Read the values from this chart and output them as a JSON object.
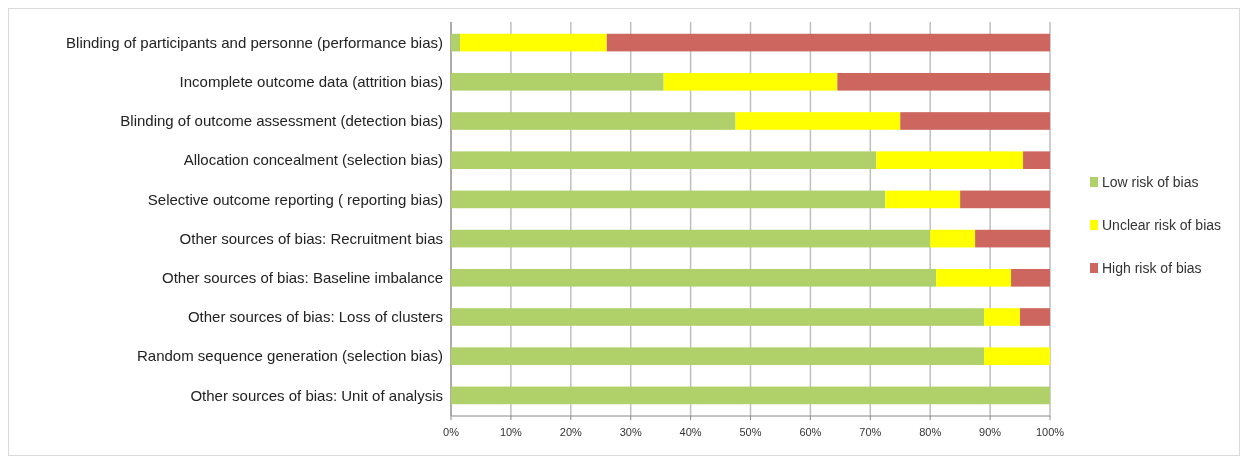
{
  "chart_data": {
    "type": "bar",
    "orientation": "horizontal",
    "stacked": true,
    "categories": [
      "Blinding of participants and personne (performance bias)",
      "Incomplete outcome data  (attrition bias)",
      "Blinding of outcome assessment (detection bias)",
      "Allocation concealment (selection bias)",
      "Selective outcome reporting ( reporting bias)",
      "Other sources of bias: Recruitment bias",
      "Other sources of bias: Baseline imbalance",
      "Other sources of bias: Loss of clusters",
      "Random sequence generation (selection bias)",
      "Other sources of bias: Unit of analysis"
    ],
    "series": [
      {
        "name": "Low risk of bias",
        "color": "#b0d06a",
        "values": [
          1.5,
          35.5,
          47.5,
          71,
          72.5,
          80,
          81,
          89,
          89,
          100
        ]
      },
      {
        "name": "Unclear risk of bias",
        "color": "#ffff00",
        "values": [
          24.5,
          29,
          27.5,
          24.5,
          12.5,
          7.5,
          12.5,
          6,
          11,
          0
        ]
      },
      {
        "name": "High risk of bias",
        "color": "#cd665e",
        "values": [
          74,
          35.5,
          25,
          4.5,
          15,
          12.5,
          6.5,
          5,
          0,
          0
        ]
      }
    ],
    "xlim": [
      0,
      100
    ],
    "xticks": [
      {
        "value": 0,
        "label": "0%"
      },
      {
        "value": 10,
        "label": "10%"
      },
      {
        "value": 20,
        "label": "20%"
      },
      {
        "value": 30,
        "label": "30%"
      },
      {
        "value": 40,
        "label": "40%"
      },
      {
        "value": 50,
        "label": "50%"
      },
      {
        "value": 60,
        "label": "60%"
      },
      {
        "value": 70,
        "label": "70%"
      },
      {
        "value": 80,
        "label": "80%"
      },
      {
        "value": 90,
        "label": "90%"
      },
      {
        "value": 100,
        "label": "100%"
      }
    ],
    "grid": "x",
    "legend": "right"
  }
}
